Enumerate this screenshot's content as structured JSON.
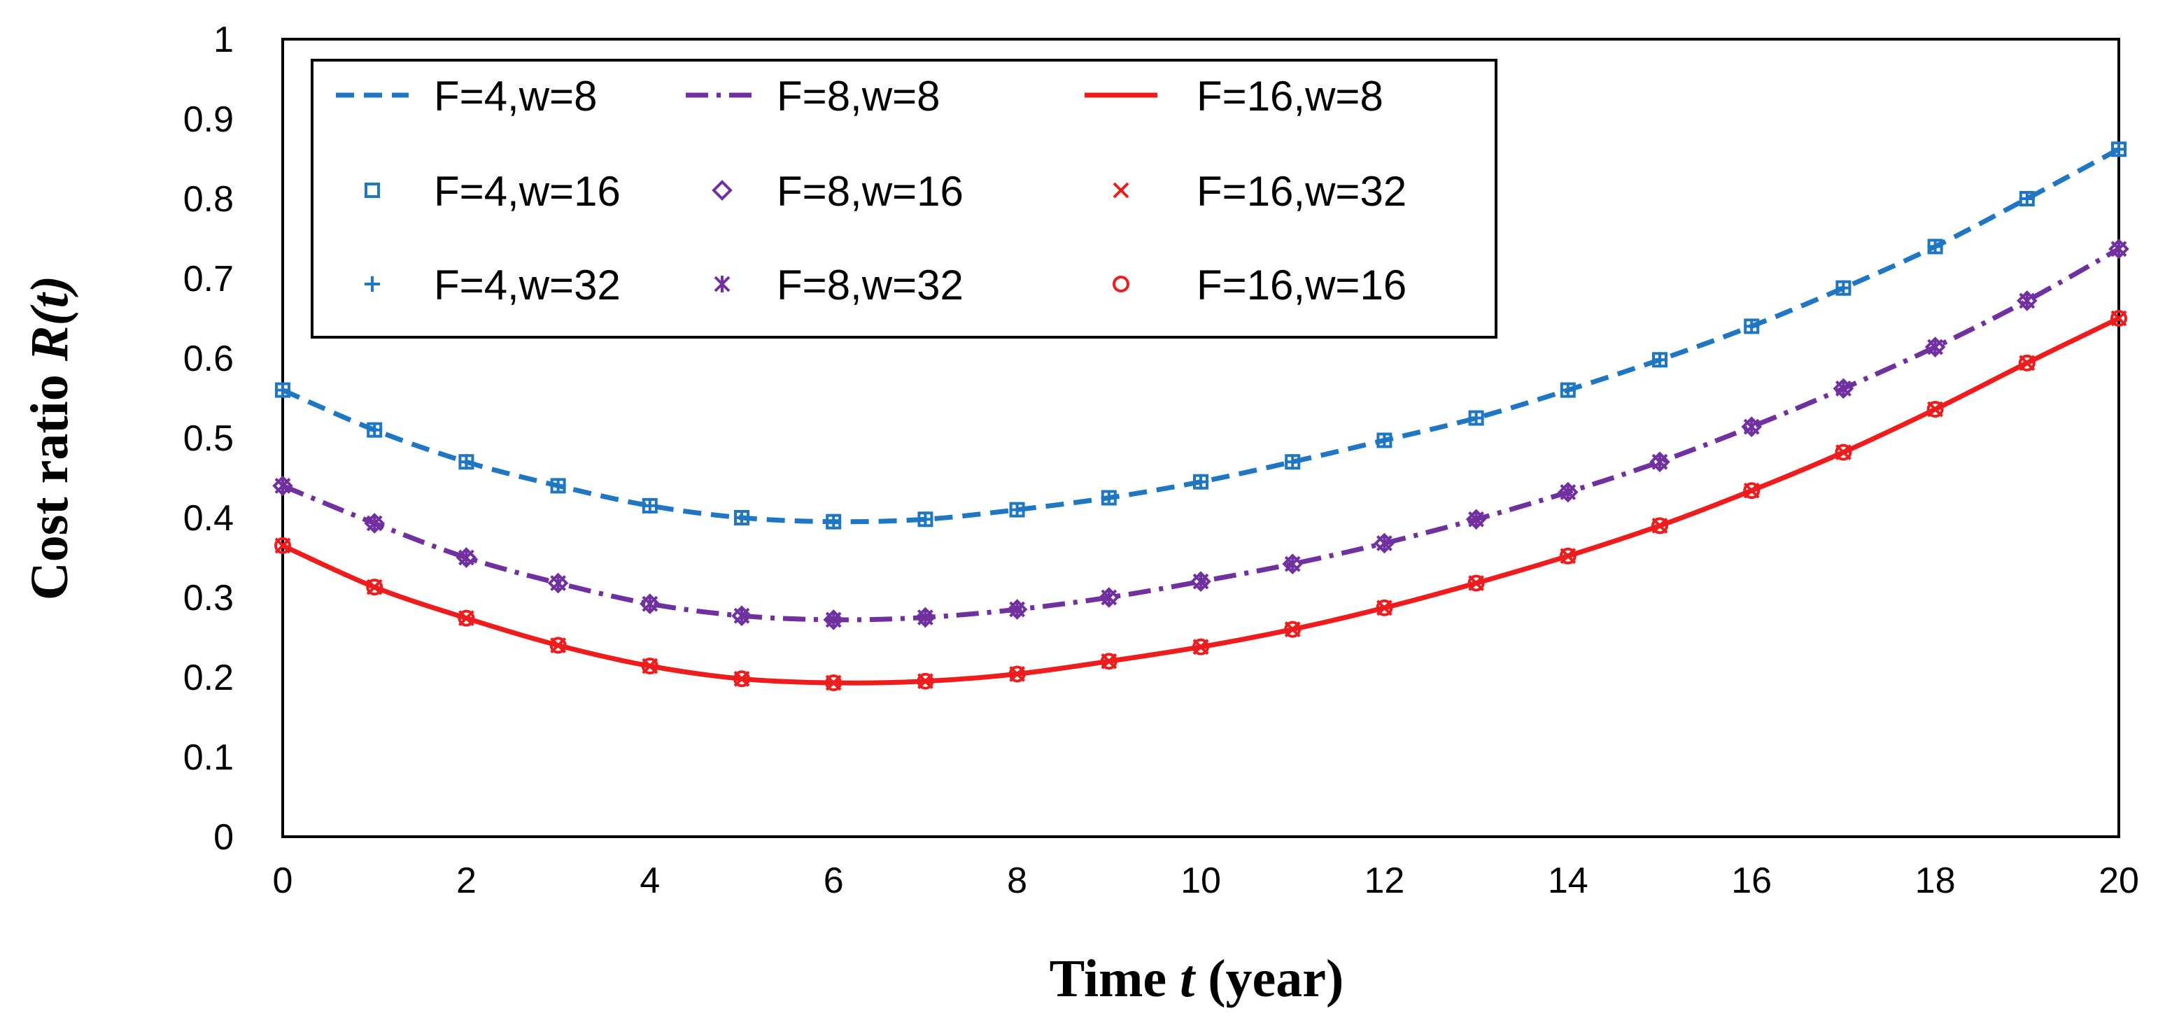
{
  "chart_data": {
    "type": "line",
    "title": "",
    "xlabel_parts": [
      "Time ",
      "t",
      " (year)"
    ],
    "ylabel_parts": [
      "Cost ratio ",
      "R(t)"
    ],
    "xlim": [
      0,
      20
    ],
    "ylim": [
      0,
      1
    ],
    "x_ticks": [
      "0",
      "2",
      "4",
      "6",
      "8",
      "10",
      "12",
      "14",
      "16",
      "18",
      "20"
    ],
    "y_ticks": [
      "0",
      "0.1",
      "0.2",
      "0.3",
      "0.4",
      "0.5",
      "0.6",
      "0.7",
      "0.8",
      "0.9",
      "1"
    ],
    "grid": false,
    "legend_position": "top-left",
    "x": [
      0,
      1,
      2,
      3,
      4,
      5,
      6,
      7,
      8,
      9,
      10,
      11,
      12,
      13,
      14,
      15,
      16,
      17,
      18,
      19,
      20
    ],
    "series": [
      {
        "name": "F=4,w=8",
        "style": "dashed",
        "color": "#1F77C4",
        "values": [
          0.56,
          0.51,
          0.47,
          0.44,
          0.415,
          0.4,
          0.395,
          0.398,
          0.41,
          0.425,
          0.445,
          0.47,
          0.497,
          0.525,
          0.56,
          0.598,
          0.64,
          0.688,
          0.74,
          0.8,
          0.862
        ]
      },
      {
        "name": "F=8,w=8",
        "style": "dashdot",
        "color": "#7030A0",
        "values": [
          0.44,
          0.393,
          0.35,
          0.318,
          0.292,
          0.277,
          0.272,
          0.275,
          0.285,
          0.3,
          0.32,
          0.342,
          0.368,
          0.398,
          0.432,
          0.47,
          0.514,
          0.562,
          0.614,
          0.672,
          0.737
        ]
      },
      {
        "name": "F=16,w=8",
        "style": "solid",
        "color": "#EE1C1C",
        "values": [
          0.365,
          0.313,
          0.274,
          0.24,
          0.214,
          0.198,
          0.193,
          0.195,
          0.204,
          0.22,
          0.238,
          0.26,
          0.287,
          0.318,
          0.352,
          0.39,
          0.434,
          0.482,
          0.536,
          0.594,
          0.65
        ]
      },
      {
        "name": "F=4,w=16",
        "marker": "square",
        "color": "#1F77C4",
        "same_as": "F=4,w=8"
      },
      {
        "name": "F=8,w=16",
        "marker": "diamond",
        "color": "#7030A0",
        "same_as": "F=8,w=8"
      },
      {
        "name": "F=16,w=32",
        "marker": "x",
        "color": "#EE1C1C",
        "same_as": "F=16,w=8"
      },
      {
        "name": "F=4,w=32",
        "marker": "plus",
        "color": "#1F77C4",
        "same_as": "F=4,w=8"
      },
      {
        "name": "F=8,w=32",
        "marker": "star",
        "color": "#7030A0",
        "same_as": "F=8,w=8"
      },
      {
        "name": "F=16,w=16",
        "marker": "circle",
        "color": "#EE1C1C",
        "same_as": "F=16,w=8"
      }
    ]
  }
}
